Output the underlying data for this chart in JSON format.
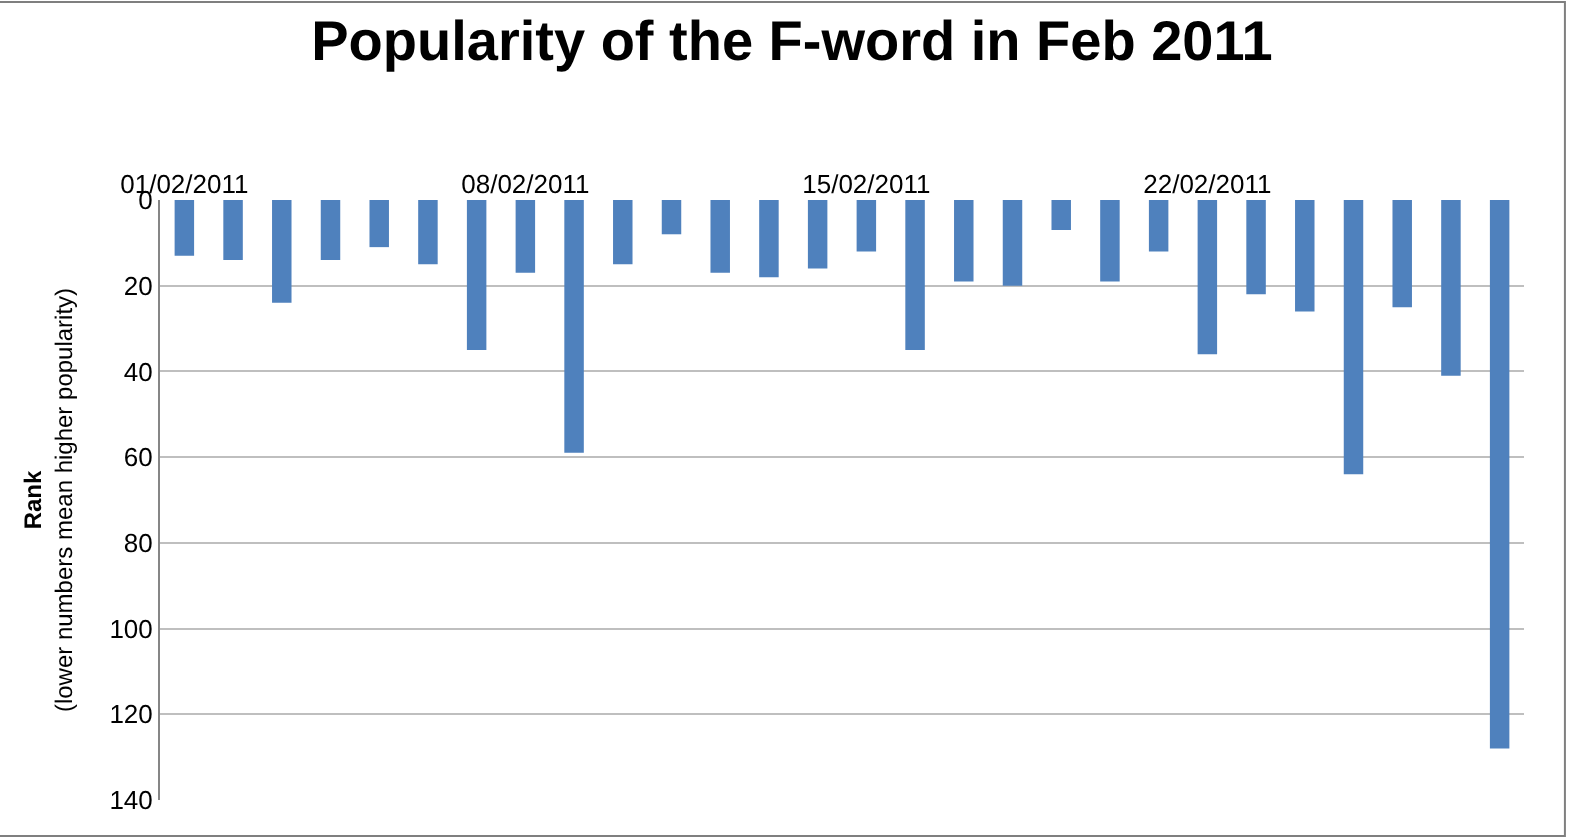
{
  "chart_data": {
    "type": "bar",
    "title": "Popularity of the F-word in Feb 2011",
    "ylabel": "Rank\n(lower numbers mean higher popularity)",
    "x": [
      "2011-02-01",
      "2011-02-02",
      "2011-02-03",
      "2011-02-04",
      "2011-02-05",
      "2011-02-06",
      "2011-02-07",
      "2011-02-08",
      "2011-02-09",
      "2011-02-10",
      "2011-02-11",
      "2011-02-12",
      "2011-02-13",
      "2011-02-14",
      "2011-02-15",
      "2011-02-16",
      "2011-02-17",
      "2011-02-18",
      "2011-02-19",
      "2011-02-20",
      "2011-02-21",
      "2011-02-22",
      "2011-02-23",
      "2011-02-24",
      "2011-02-25",
      "2011-02-26",
      "2011-02-27",
      "2011-02-28"
    ],
    "values": [
      13,
      14,
      24,
      14,
      11,
      15,
      35,
      17,
      59,
      15,
      8,
      17,
      18,
      16,
      12,
      35,
      19,
      20,
      7,
      19,
      12,
      36,
      22,
      26,
      64,
      25,
      41,
      128
    ],
    "color": "#4f81bd",
    "xlim": [
      "2011-01-31T12:00",
      "2011-02-28T12:00"
    ],
    "xticks": [
      {
        "value": "2011-02-01",
        "label": "01/02/2011"
      },
      {
        "value": "2011-02-08",
        "label": "08/02/2011"
      },
      {
        "value": "2011-02-15",
        "label": "15/02/2011"
      },
      {
        "value": "2011-02-22",
        "label": "22/02/2011"
      }
    ],
    "ylim": [
      140,
      0
    ],
    "yticks": [
      0,
      20,
      40,
      60,
      80,
      100,
      120,
      140
    ],
    "grid": "y",
    "legend": false
  }
}
